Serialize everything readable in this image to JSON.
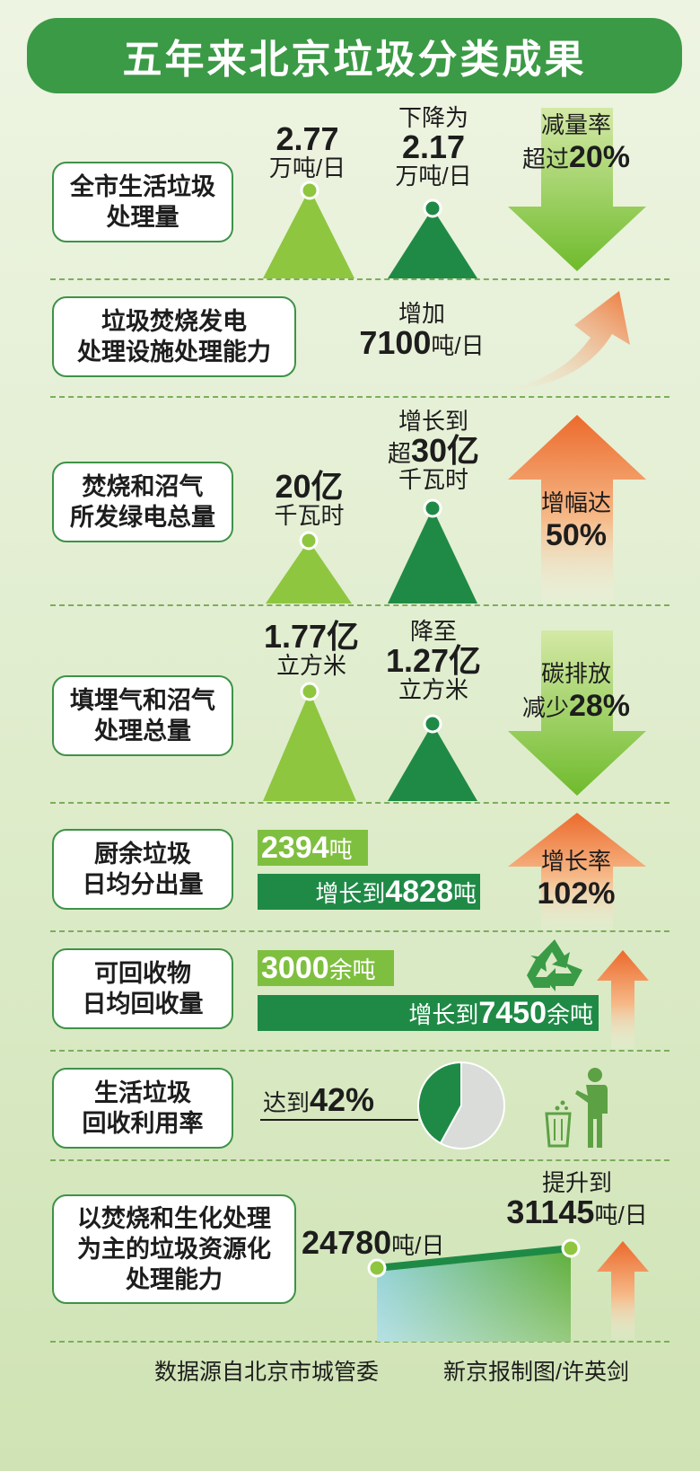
{
  "title": "五年来北京垃圾分类成果",
  "sections": {
    "s1": {
      "label": "全市生活垃圾\n处理量",
      "before_value": "2.77",
      "before_unit": "万吨/日",
      "after_prefix": "下降为",
      "after_value": "2.17",
      "after_unit": "万吨/日",
      "arrow_line1": "减量率",
      "arrow_line2_prefix": "超过",
      "arrow_line2_value": "20%"
    },
    "s2": {
      "label": "垃圾焚烧发电\n处理设施处理能力",
      "prefix": "增加",
      "value": "7100",
      "unit": "吨/日"
    },
    "s3": {
      "label": "焚烧和沼气\n所发绿电总量",
      "before_value": "20亿",
      "before_unit": "千瓦时",
      "after_prefix": "增长到",
      "after_value_prefix": "超",
      "after_value": "30亿",
      "after_unit": "千瓦时",
      "arrow_line1": "增幅达",
      "arrow_line2": "50%"
    },
    "s4": {
      "label": "填埋气和沼气\n处理总量",
      "before_value": "1.77亿",
      "before_unit": "立方米",
      "after_prefix": "降至",
      "after_value": "1.27亿",
      "after_unit": "立方米",
      "arrow_line1": "碳排放",
      "arrow_line2_prefix": "减少",
      "arrow_line2_value": "28%"
    },
    "s5": {
      "label": "厨余垃圾\n日均分出量",
      "bar1_value": "2394",
      "bar1_unit": "吨",
      "bar2_prefix": "增长到",
      "bar2_value": "4828",
      "bar2_unit": "吨",
      "arrow_line1": "增长率",
      "arrow_line2": "102%"
    },
    "s6": {
      "label": "可回收物\n日均回收量",
      "bar1_value": "3000",
      "bar1_unit": "余吨",
      "bar2_prefix": "增长到",
      "bar2_value": "7450",
      "bar2_unit": "余吨"
    },
    "s7": {
      "label": "生活垃圾\n回收利用率",
      "prefix": "达到",
      "value": "42%"
    },
    "s8": {
      "label": "以焚烧和生化处理\n为主的垃圾资源化\n处理能力",
      "start_value": "24780",
      "start_unit": "吨/日",
      "end_prefix": "提升到",
      "end_value": "31145",
      "end_unit": "吨/日"
    }
  },
  "footer": {
    "source": "数据源自北京市城管委",
    "credit": "新京报制图/许英剑"
  },
  "colors": {
    "light_green": "#7fbf3f",
    "dark_green": "#1f8a46",
    "title_green": "#3b9a45",
    "orange": "#ee7a3c"
  },
  "chart_data": [
    {
      "type": "bar",
      "metric": "全市生活垃圾处理量",
      "unit": "万吨/日",
      "values": [
        2.77,
        2.17
      ],
      "change": "减量率超过20%"
    },
    {
      "type": "bar",
      "metric": "垃圾焚烧发电处理设施处理能力",
      "unit": "吨/日",
      "increase": 7100
    },
    {
      "type": "bar",
      "metric": "焚烧和沼气所发绿电总量",
      "unit": "千瓦时",
      "values": [
        2000000000,
        3000000000
      ],
      "change": "增幅达50%"
    },
    {
      "type": "bar",
      "metric": "填埋气和沼气处理总量",
      "unit": "立方米",
      "values": [
        177000000,
        127000000
      ],
      "change": "碳排放减少28%"
    },
    {
      "type": "bar",
      "metric": "厨余垃圾日均分出量",
      "unit": "吨",
      "values": [
        2394,
        4828
      ],
      "change": "增长率102%"
    },
    {
      "type": "bar",
      "metric": "可回收物日均回收量",
      "unit": "余吨",
      "values": [
        3000,
        7450
      ]
    },
    {
      "type": "pie",
      "metric": "生活垃圾回收利用率",
      "values": [
        42,
        58
      ]
    },
    {
      "type": "line",
      "metric": "以焚烧和生化处理为主的垃圾资源化处理能力",
      "unit": "吨/日",
      "values": [
        24780,
        31145
      ]
    }
  ]
}
